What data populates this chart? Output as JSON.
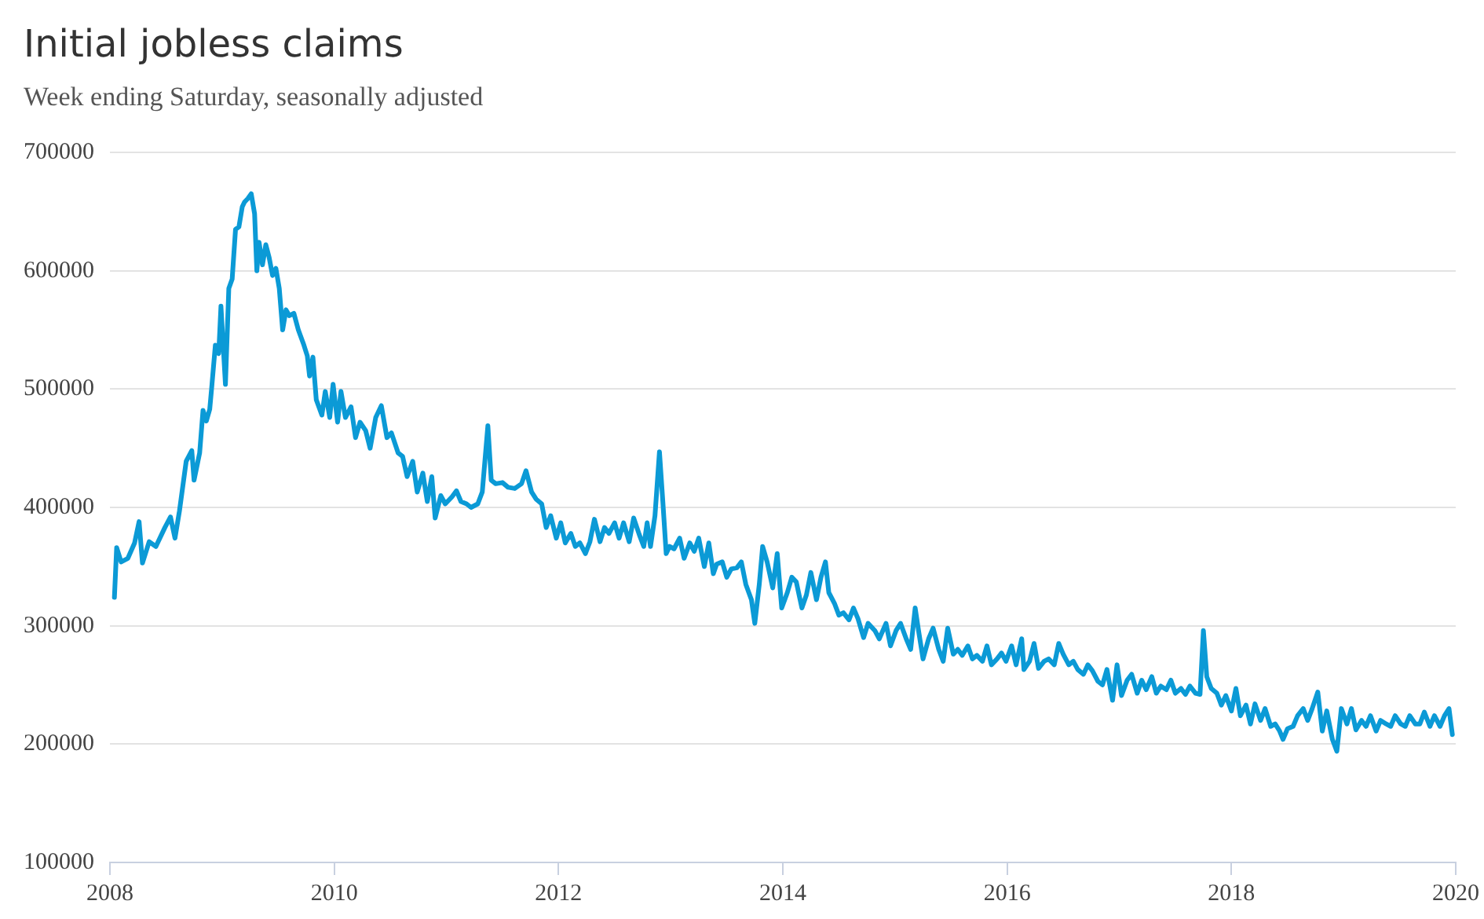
{
  "chart_data": {
    "type": "line",
    "title": "Initial jobless claims",
    "subtitle": "Week ending Saturday, seasonally adjusted",
    "xlim": [
      2008,
      2020
    ],
    "xticks": [
      2008,
      2010,
      2012,
      2014,
      2016,
      2018,
      2020
    ],
    "ylim": [
      100000,
      700000
    ],
    "yticks": [
      100000,
      200000,
      300000,
      400000,
      500000,
      600000,
      700000
    ],
    "grid": "y",
    "legend": false,
    "marker": "none",
    "line_style": "solid",
    "series": [
      {
        "color": "#0b9ad6",
        "x": [
          2008.04,
          2008.06,
          2008.1,
          2008.16,
          2008.22,
          2008.26,
          2008.29,
          2008.35,
          2008.41,
          2008.49,
          2008.54,
          2008.58,
          2008.62,
          2008.68,
          2008.73,
          2008.75,
          2008.8,
          2008.83,
          2008.86,
          2008.89,
          2008.91,
          2008.94,
          2008.97,
          2008.99,
          2009.03,
          2009.06,
          2009.09,
          2009.12,
          2009.15,
          2009.18,
          2009.2,
          2009.23,
          2009.26,
          2009.29,
          2009.31,
          2009.33,
          2009.36,
          2009.39,
          2009.42,
          2009.45,
          2009.48,
          2009.51,
          2009.54,
          2009.57,
          2009.6,
          2009.64,
          2009.68,
          2009.73,
          2009.76,
          2009.78,
          2009.81,
          2009.84,
          2009.89,
          2009.92,
          2009.96,
          2009.99,
          2010.03,
          2010.06,
          2010.1,
          2010.15,
          2010.19,
          2010.23,
          2010.28,
          2010.32,
          2010.37,
          2010.42,
          2010.47,
          2010.51,
          2010.57,
          2010.61,
          2010.65,
          2010.7,
          2010.74,
          2010.79,
          2010.83,
          2010.87,
          2010.9,
          2010.95,
          2010.99,
          2011.05,
          2011.09,
          2011.13,
          2011.18,
          2011.22,
          2011.28,
          2011.32,
          2011.37,
          2011.4,
          2011.44,
          2011.5,
          2011.55,
          2011.61,
          2011.67,
          2011.71,
          2011.76,
          2011.8,
          2011.85,
          2011.89,
          2011.93,
          2011.98,
          2012.02,
          2012.06,
          2012.11,
          2012.15,
          2012.19,
          2012.24,
          2012.28,
          2012.32,
          2012.37,
          2012.41,
          2012.45,
          2012.5,
          2012.54,
          2012.58,
          2012.63,
          2012.67,
          2012.72,
          2012.76,
          2012.79,
          2012.82,
          2012.86,
          2012.9,
          2012.93,
          2012.96,
          2012.99,
          2013.03,
          2013.08,
          2013.12,
          2013.17,
          2013.21,
          2013.25,
          2013.3,
          2013.34,
          2013.38,
          2013.41,
          2013.46,
          2013.5,
          2013.54,
          2013.59,
          2013.63,
          2013.67,
          2013.72,
          2013.75,
          2013.79,
          2013.82,
          2013.86,
          2013.91,
          2013.95,
          2013.99,
          2014.04,
          2014.08,
          2014.12,
          2014.17,
          2014.21,
          2014.25,
          2014.3,
          2014.34,
          2014.38,
          2014.41,
          2014.46,
          2014.5,
          2014.54,
          2014.59,
          2014.63,
          2014.67,
          2014.72,
          2014.76,
          2014.82,
          2014.86,
          2014.92,
          2014.96,
          2015.01,
          2015.05,
          2015.1,
          2015.14,
          2015.18,
          2015.21,
          2015.25,
          2015.3,
          2015.34,
          2015.39,
          2015.43,
          2015.47,
          2015.52,
          2015.56,
          2015.6,
          2015.65,
          2015.69,
          2015.73,
          2015.78,
          2015.82,
          2015.86,
          2015.91,
          2015.95,
          2015.99,
          2016.04,
          2016.08,
          2016.13,
          2016.15,
          2016.2,
          2016.24,
          2016.28,
          2016.33,
          2016.37,
          2016.42,
          2016.46,
          2016.5,
          2016.55,
          2016.59,
          2016.63,
          2016.68,
          2016.72,
          2016.76,
          2016.81,
          2016.85,
          2016.89,
          2016.94,
          2016.98,
          2017.02,
          2017.07,
          2017.11,
          2017.16,
          2017.2,
          2017.24,
          2017.29,
          2017.33,
          2017.37,
          2017.42,
          2017.46,
          2017.5,
          2017.55,
          2017.59,
          2017.63,
          2017.68,
          2017.72,
          2017.75,
          2017.78,
          2017.82,
          2017.87,
          2017.91,
          2017.95,
          2018.0,
          2018.04,
          2018.08,
          2018.13,
          2018.17,
          2018.21,
          2018.26,
          2018.3,
          2018.35,
          2018.39,
          2018.43,
          2018.46,
          2018.5,
          2018.55,
          2018.59,
          2018.64,
          2018.68,
          2018.72,
          2018.77,
          2018.81,
          2018.85,
          2018.9,
          2018.94,
          2018.98,
          2019.03,
          2019.07,
          2019.11,
          2019.16,
          2019.2,
          2019.24,
          2019.29,
          2019.33,
          2019.38,
          2019.42,
          2019.46,
          2019.51,
          2019.55,
          2019.59,
          2019.64,
          2019.68,
          2019.72,
          2019.77,
          2019.81,
          2019.86,
          2019.9,
          2019.94,
          2019.97
        ],
        "values": [
          324000,
          366000,
          354000,
          357000,
          370000,
          388000,
          353000,
          371000,
          367000,
          383000,
          392000,
          374000,
          397000,
          439000,
          448000,
          423000,
          446000,
          482000,
          473000,
          483000,
          504000,
          537000,
          530000,
          570000,
          504000,
          585000,
          593000,
          635000,
          637000,
          654000,
          658000,
          661000,
          665000,
          648000,
          600000,
          624000,
          605000,
          622000,
          611000,
          596000,
          602000,
          585000,
          550000,
          567000,
          562000,
          564000,
          550000,
          537000,
          528000,
          511000,
          527000,
          491000,
          478000,
          498000,
          476000,
          504000,
          472000,
          498000,
          476000,
          485000,
          459000,
          472000,
          465000,
          450000,
          476000,
          486000,
          459000,
          463000,
          446000,
          443000,
          426000,
          439000,
          413000,
          429000,
          405000,
          426000,
          391000,
          410000,
          403000,
          409000,
          414000,
          405000,
          403000,
          400000,
          403000,
          413000,
          469000,
          423000,
          420000,
          421000,
          417000,
          416000,
          420000,
          431000,
          413000,
          407000,
          403000,
          383000,
          393000,
          374000,
          387000,
          370000,
          378000,
          367000,
          370000,
          361000,
          371000,
          390000,
          371000,
          383000,
          378000,
          387000,
          374000,
          387000,
          371000,
          391000,
          377000,
          367000,
          387000,
          367000,
          393000,
          447000,
          405000,
          361000,
          367000,
          365000,
          374000,
          357000,
          370000,
          363000,
          374000,
          350000,
          370000,
          344000,
          352000,
          354000,
          341000,
          348000,
          349000,
          354000,
          335000,
          322000,
          302000,
          335000,
          367000,
          354000,
          332000,
          361000,
          315000,
          328000,
          341000,
          337000,
          315000,
          326000,
          345000,
          322000,
          341000,
          354000,
          328000,
          319000,
          309000,
          311000,
          305000,
          315000,
          306000,
          290000,
          302000,
          296000,
          289000,
          302000,
          283000,
          296000,
          302000,
          289000,
          280000,
          315000,
          296000,
          272000,
          289000,
          298000,
          280000,
          270000,
          298000,
          276000,
          280000,
          275000,
          283000,
          272000,
          275000,
          270000,
          283000,
          267000,
          272000,
          277000,
          270000,
          283000,
          267000,
          289000,
          263000,
          270000,
          285000,
          264000,
          270000,
          272000,
          267000,
          285000,
          276000,
          267000,
          270000,
          263000,
          259000,
          267000,
          262000,
          253000,
          250000,
          263000,
          237000,
          267000,
          241000,
          254000,
          259000,
          243000,
          254000,
          246000,
          257000,
          243000,
          249000,
          246000,
          254000,
          243000,
          247000,
          242000,
          249000,
          243000,
          242000,
          296000,
          257000,
          247000,
          243000,
          233000,
          241000,
          228000,
          247000,
          224000,
          233000,
          217000,
          234000,
          220000,
          230000,
          215000,
          217000,
          211000,
          204000,
          213000,
          215000,
          224000,
          230000,
          220000,
          230000,
          244000,
          211000,
          228000,
          204000,
          194000,
          230000,
          217000,
          230000,
          212000,
          220000,
          215000,
          224000,
          211000,
          220000,
          217000,
          215000,
          224000,
          217000,
          215000,
          224000,
          217000,
          217000,
          227000,
          215000,
          224000,
          215000,
          224000,
          230000,
          208000
        ]
      }
    ]
  }
}
